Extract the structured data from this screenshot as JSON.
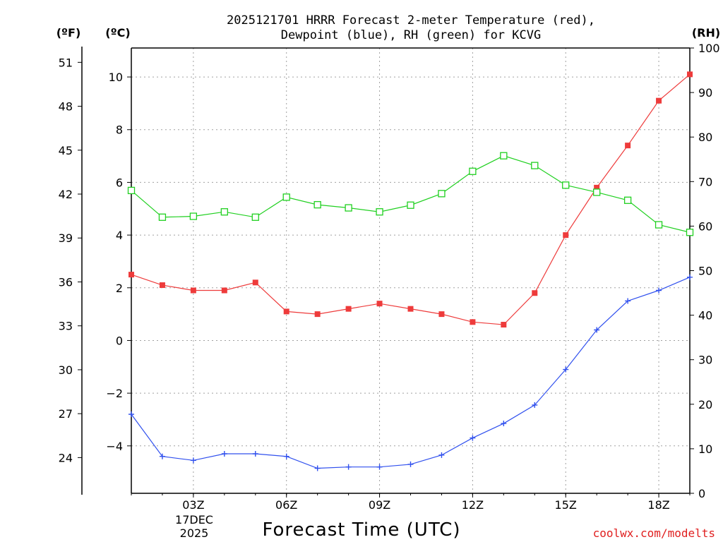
{
  "chart_data": {
    "type": "line",
    "title_line1": "2025121701 HRRR Forecast 2-meter Temperature (red),",
    "title_line2": "Dewpoint (blue), RH (green) for KCVG",
    "unit_f": "(ºF)",
    "unit_c": "(ºC)",
    "unit_rh": "(RH)",
    "xlabel": "Forecast Time (UTC)",
    "credit": "coolwx.com/modelts",
    "date_label_1": "17DEC",
    "date_label_2": "2025",
    "x_hours": [
      1,
      2,
      3,
      4,
      5,
      6,
      7,
      8,
      9,
      10,
      11,
      12,
      13,
      14,
      15,
      16,
      17,
      18,
      19
    ],
    "xlim": [
      1,
      19
    ],
    "x_ticks": [
      {
        "hour": 3,
        "label": "03Z"
      },
      {
        "hour": 6,
        "label": "06Z"
      },
      {
        "hour": 9,
        "label": "09Z"
      },
      {
        "hour": 12,
        "label": "12Z"
      },
      {
        "hour": 15,
        "label": "15Z"
      },
      {
        "hour": 18,
        "label": "18Z"
      }
    ],
    "c_axis": {
      "ylim": [
        -5.8,
        11.1
      ],
      "ticks": [
        -4,
        -2,
        0,
        2,
        4,
        6,
        8,
        10
      ],
      "labels": [
        "−4",
        "−2",
        "0",
        "2",
        "4",
        "6",
        "8",
        "10"
      ]
    },
    "f_axis": {
      "ticks": [
        24,
        27,
        30,
        33,
        36,
        39,
        42,
        45,
        48,
        51
      ],
      "labels": [
        "24",
        "27",
        "30",
        "33",
        "36",
        "39",
        "42",
        "45",
        "48",
        "51"
      ]
    },
    "rh_axis": {
      "ylim": [
        0,
        100
      ],
      "ticks": [
        0,
        10,
        20,
        30,
        40,
        50,
        60,
        70,
        80,
        90,
        100
      ],
      "labels": [
        "0",
        "10",
        "20",
        "30",
        "40",
        "50",
        "60",
        "70",
        "80",
        "90",
        "100"
      ]
    },
    "series": [
      {
        "name": "Temperature",
        "axis": "c",
        "color": "#ee3b3b",
        "marker": "filled-square",
        "values": [
          2.5,
          2.1,
          1.9,
          1.9,
          2.2,
          1.1,
          1.0,
          1.2,
          1.4,
          1.2,
          1.0,
          0.7,
          0.6,
          1.8,
          4.0,
          5.8,
          7.4,
          9.1,
          10.1
        ]
      },
      {
        "name": "Dewpoint",
        "axis": "c",
        "color": "#3050ee",
        "marker": "plus",
        "values": [
          -2.8,
          -4.4,
          -4.55,
          -4.3,
          -4.3,
          -4.4,
          -4.85,
          -4.8,
          -4.8,
          -4.7,
          -4.35,
          -3.7,
          -3.15,
          -2.45,
          -1.1,
          0.4,
          1.5,
          1.9,
          2.4
        ]
      },
      {
        "name": "RH",
        "axis": "rh",
        "color": "#20d020",
        "marker": "open-square",
        "values": [
          68,
          62,
          62.2,
          63.2,
          62,
          66.5,
          64.8,
          64.1,
          63.2,
          64.7,
          67.3,
          72.3,
          75.8,
          73.6,
          69.2,
          67.6,
          65.8,
          60.3,
          58.6
        ]
      }
    ]
  }
}
